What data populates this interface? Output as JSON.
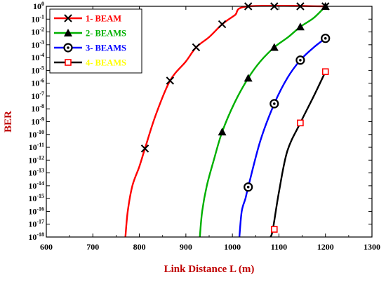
{
  "chart_data": {
    "type": "line",
    "xlabel": "Link Distance L (m)",
    "ylabel": "BER",
    "xlim": [
      600,
      1300
    ],
    "ylim_exponent": [
      -18,
      0
    ],
    "y_scale": "log",
    "x_ticks": [
      "600",
      "700",
      "800",
      "900",
      "1000",
      "1100",
      "1200",
      "1300"
    ],
    "y_ticks": [
      {
        "base": "10",
        "exp": "0"
      },
      {
        "base": "10",
        "exp": "-1"
      },
      {
        "base": "10",
        "exp": "-2"
      },
      {
        "base": "10",
        "exp": "-3"
      },
      {
        "base": "10",
        "exp": "-4"
      },
      {
        "base": "10",
        "exp": "-5"
      },
      {
        "base": "10",
        "exp": "-6"
      },
      {
        "base": "10",
        "exp": "-7"
      },
      {
        "base": "10",
        "exp": "-8"
      },
      {
        "base": "10",
        "exp": "-9"
      },
      {
        "base": "10",
        "exp": "-10"
      },
      {
        "base": "10",
        "exp": "-11"
      },
      {
        "base": "10",
        "exp": "-12"
      },
      {
        "base": "10",
        "exp": "-13"
      },
      {
        "base": "10",
        "exp": "-14"
      },
      {
        "base": "10",
        "exp": "-15"
      },
      {
        "base": "10",
        "exp": "-16"
      },
      {
        "base": "10",
        "exp": "-17"
      },
      {
        "base": "10",
        "exp": "-18"
      }
    ],
    "grid": false,
    "legend_position": "top-left",
    "series": [
      {
        "name": "1- BEAM",
        "color": "#ff0000",
        "marker": "x",
        "marker_color": "#000000",
        "curve_log10": [
          [
            770,
            -18
          ],
          [
            775,
            -16
          ],
          [
            785,
            -14
          ],
          [
            800,
            -12.5
          ],
          [
            812,
            -11.1
          ],
          [
            835,
            -8.5
          ],
          [
            866,
            -5.8
          ],
          [
            900,
            -4.3
          ],
          [
            922,
            -3.2
          ],
          [
            950,
            -2.4
          ],
          [
            978,
            -1.4
          ],
          [
            1005,
            -0.7
          ],
          [
            1034,
            0
          ],
          [
            1200,
            0
          ]
        ],
        "markers": [
          {
            "x": 812,
            "exp": -11.1
          },
          {
            "x": 866,
            "exp": -5.8
          },
          {
            "x": 922,
            "exp": -3.2
          },
          {
            "x": 978,
            "exp": -1.4
          },
          {
            "x": 1034,
            "exp": 0
          },
          {
            "x": 1090,
            "exp": 0
          },
          {
            "x": 1146,
            "exp": 0
          },
          {
            "x": 1200,
            "exp": 0
          }
        ]
      },
      {
        "name": "2- BEAMS",
        "color": "#00b000",
        "marker": "triangle",
        "marker_color": "#000000",
        "curve_log10": [
          [
            930,
            -18
          ],
          [
            935,
            -16
          ],
          [
            945,
            -14
          ],
          [
            960,
            -12
          ],
          [
            978,
            -9.8
          ],
          [
            1005,
            -7.5
          ],
          [
            1034,
            -5.6
          ],
          [
            1060,
            -4.3
          ],
          [
            1090,
            -3.2
          ],
          [
            1120,
            -2.4
          ],
          [
            1146,
            -1.6
          ],
          [
            1175,
            -0.9
          ],
          [
            1200,
            0
          ]
        ],
        "markers": [
          {
            "x": 978,
            "exp": -9.8
          },
          {
            "x": 1034,
            "exp": -5.6
          },
          {
            "x": 1090,
            "exp": -3.2
          },
          {
            "x": 1146,
            "exp": -1.6
          },
          {
            "x": 1200,
            "exp": 0
          }
        ]
      },
      {
        "name": "3- BEAMS",
        "color": "#0000ff",
        "marker": "circle-dot",
        "marker_color": "#000000",
        "curve_log10": [
          [
            1015,
            -18
          ],
          [
            1020,
            -16
          ],
          [
            1028,
            -15
          ],
          [
            1034,
            -14.1
          ],
          [
            1060,
            -10.5
          ],
          [
            1090,
            -7.6
          ],
          [
            1118,
            -5.6
          ],
          [
            1146,
            -4.2
          ],
          [
            1175,
            -3.2
          ],
          [
            1200,
            -2.5
          ]
        ],
        "markers": [
          {
            "x": 1034,
            "exp": -14.1
          },
          {
            "x": 1090,
            "exp": -7.6
          },
          {
            "x": 1146,
            "exp": -4.2
          },
          {
            "x": 1200,
            "exp": -2.5
          }
        ]
      },
      {
        "name": "4- BEAMS",
        "color": "#000000",
        "marker": "square",
        "marker_color": "#ff0000",
        "curve_log10": [
          [
            1082,
            -18
          ],
          [
            1087,
            -17.4
          ],
          [
            1100,
            -14.5
          ],
          [
            1118,
            -11.3
          ],
          [
            1146,
            -9.1
          ],
          [
            1175,
            -7
          ],
          [
            1200,
            -5.1
          ]
        ],
        "markers": [
          {
            "x": 1090,
            "exp": -17.4
          },
          {
            "x": 1146,
            "exp": -9.1
          },
          {
            "x": 1200,
            "exp": -5.1
          }
        ]
      }
    ]
  }
}
